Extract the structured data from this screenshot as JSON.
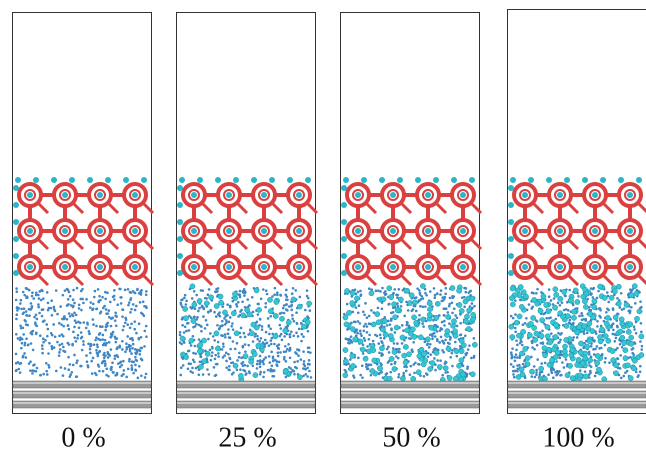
{
  "panels": [
    {
      "label": "0 %"
    },
    {
      "label": "25 %"
    },
    {
      "label": "50 %"
    },
    {
      "label": "100 %"
    }
  ]
}
